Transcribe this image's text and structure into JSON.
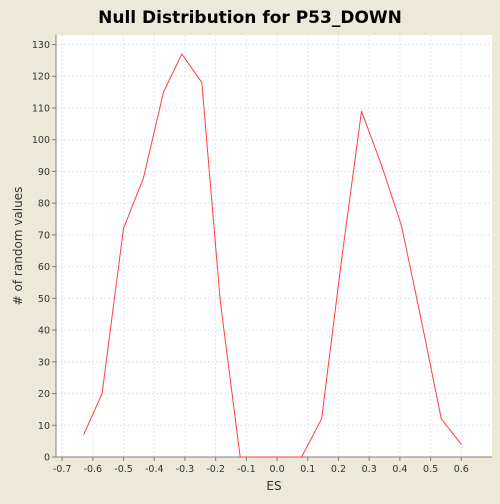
{
  "chart_data": {
    "type": "line",
    "title": "Null Distribution for P53_DOWN",
    "xlabel": "ES",
    "ylabel": "# of random values",
    "xlim": [
      -0.72,
      0.7
    ],
    "ylim": [
      0,
      133
    ],
    "x_ticks": [
      -0.7,
      -0.6,
      -0.5,
      -0.4,
      -0.3,
      -0.2,
      -0.1,
      0.0,
      0.1,
      0.2,
      0.3,
      0.4,
      0.5,
      0.6
    ],
    "x_tick_labels": [
      "-0.7",
      "-0.6",
      "-0.5",
      "-0.4",
      "-0.3",
      "-0.2",
      "-0.1",
      "0.0",
      "0.1",
      "0.2",
      "0.3",
      "0.4",
      "0.5",
      "0.6"
    ],
    "y_ticks": [
      0,
      10,
      20,
      30,
      40,
      50,
      60,
      70,
      80,
      90,
      100,
      110,
      120,
      130
    ],
    "y_tick_labels": [
      "0",
      "10",
      "20",
      "30",
      "40",
      "50",
      "60",
      "70",
      "80",
      "90",
      "100",
      "110",
      "120",
      "130"
    ],
    "grid": true,
    "legend": "none",
    "series": [
      {
        "color": "#FF4040",
        "x": [
          -0.63,
          -0.57,
          -0.5,
          -0.435,
          -0.37,
          -0.31,
          -0.245,
          -0.185,
          -0.12,
          -0.055,
          0.01,
          0.08,
          0.145,
          0.21,
          0.275,
          0.34,
          0.405,
          0.47,
          0.535,
          0.6
        ],
        "y": [
          7,
          20,
          72,
          88,
          115,
          127,
          118,
          49,
          0,
          0,
          0,
          0,
          12,
          62,
          109,
          92,
          73,
          43,
          12,
          4
        ]
      }
    ]
  },
  "colors": {
    "background": "#ECE9D8",
    "plot_background": "#FFFFFF",
    "grid": "#E4E4E4",
    "axis": "#808080",
    "line": "#FF4040"
  }
}
